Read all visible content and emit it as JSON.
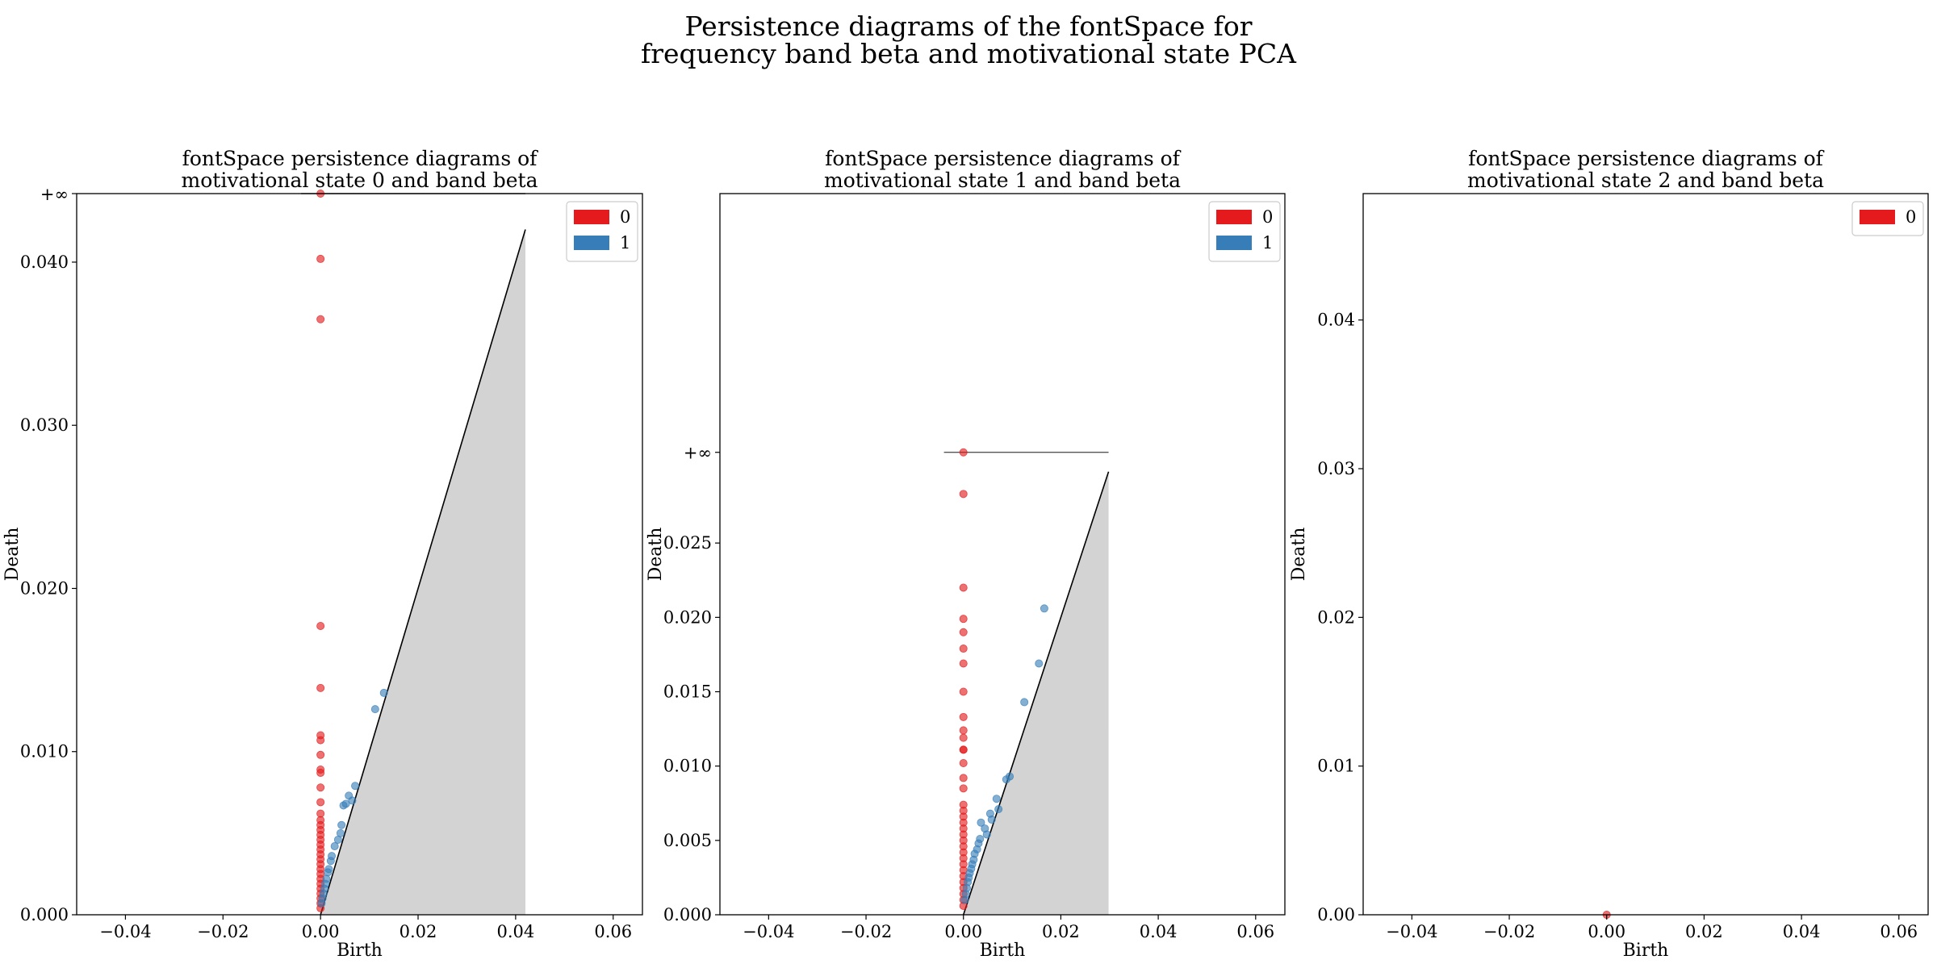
{
  "figure": {
    "title_line1": "Persistence diagrams of the fontSpace for",
    "title_line2": "frequency band beta and motivational state PCA"
  },
  "chart_data": [
    {
      "type": "scatter",
      "title_line1": "fontSpace persistence diagrams of",
      "title_line2": "motivational state 0 and band beta",
      "xlabel": "Birth",
      "ylabel": "Death",
      "xlim": [
        -0.05,
        0.066
      ],
      "ylim": [
        0,
        0.0442
      ],
      "xticks": [
        -0.04,
        -0.02,
        0.0,
        0.02,
        0.04,
        0.06
      ],
      "xtick_labels": [
        "−0.04",
        "−0.02",
        "0.00",
        "0.02",
        "0.04",
        "0.06"
      ],
      "yticks": [
        0,
        0.01,
        0.02,
        0.03,
        0.04
      ],
      "ytick_labels": [
        "0.000",
        "0.010",
        "0.020",
        "0.030",
        "0.040"
      ],
      "infinity_label": "+∞",
      "infinity_y": 0.0442,
      "diagonal_max": 0.042,
      "legend": {
        "position": "top-right",
        "entries": [
          {
            "label": "0",
            "color": "#e41a1c"
          },
          {
            "label": "1",
            "color": "#377eb8"
          }
        ]
      },
      "series": [
        {
          "name": "0",
          "color": "#e41a1c",
          "points": [
            [
              0,
              0.0442
            ],
            [
              0,
              0.0402
            ],
            [
              0,
              0.0365
            ],
            [
              0,
              0.0177
            ],
            [
              0,
              0.0139
            ],
            [
              0,
              0.011
            ],
            [
              0,
              0.0107
            ],
            [
              0,
              0.0098
            ],
            [
              0,
              0.0089
            ],
            [
              0,
              0.0087
            ],
            [
              0,
              0.0078
            ],
            [
              0,
              0.0069
            ],
            [
              0,
              0.0062
            ],
            [
              0,
              0.0058
            ],
            [
              0,
              0.0055
            ],
            [
              0,
              0.0052
            ],
            [
              0,
              0.0049
            ],
            [
              0,
              0.0046
            ],
            [
              0,
              0.0043
            ],
            [
              0,
              0.004
            ],
            [
              0,
              0.0037
            ],
            [
              0,
              0.0034
            ],
            [
              0,
              0.0031
            ],
            [
              0,
              0.0028
            ],
            [
              0,
              0.0025
            ],
            [
              0,
              0.0022
            ],
            [
              0,
              0.0019
            ],
            [
              0,
              0.0016
            ],
            [
              0,
              0.0013
            ],
            [
              0,
              0.001
            ],
            [
              0,
              0.0007
            ],
            [
              0,
              0.0004
            ]
          ]
        },
        {
          "name": "1",
          "color": "#377eb8",
          "points": [
            [
              0.0112,
              0.0126
            ],
            [
              0.013,
              0.0136
            ],
            [
              0.0071,
              0.0079
            ],
            [
              0.0058,
              0.0073
            ],
            [
              0.0065,
              0.007
            ],
            [
              0.0047,
              0.0067
            ],
            [
              0.0052,
              0.0068
            ],
            [
              0.0043,
              0.0055
            ],
            [
              0.0041,
              0.005
            ],
            [
              0.0036,
              0.0046
            ],
            [
              0.0029,
              0.0042
            ],
            [
              0.0023,
              0.0036
            ],
            [
              0.0021,
              0.0033
            ],
            [
              0.0017,
              0.0028
            ],
            [
              0.0015,
              0.0026
            ],
            [
              0.0012,
              0.0022
            ],
            [
              0.001,
              0.0019
            ],
            [
              0.0008,
              0.0016
            ],
            [
              0.0006,
              0.0013
            ],
            [
              0.0004,
              0.001
            ],
            [
              0.0002,
              0.0007
            ]
          ]
        }
      ]
    },
    {
      "type": "scatter",
      "title_line1": "fontSpace persistence diagrams of",
      "title_line2": "motivational state 1 and band beta",
      "xlabel": "Birth",
      "ylabel": "Death",
      "xlim": [
        -0.05,
        0.066
      ],
      "ylim": [
        0,
        0.0485
      ],
      "xticks": [
        -0.04,
        -0.02,
        0.0,
        0.02,
        0.04,
        0.06
      ],
      "xtick_labels": [
        "−0.04",
        "−0.02",
        "0.00",
        "0.02",
        "0.04",
        "0.06"
      ],
      "yticks": [
        0,
        0.005,
        0.01,
        0.015,
        0.02,
        0.025
      ],
      "ytick_labels": [
        "0.000",
        "0.005",
        "0.010",
        "0.015",
        "0.020",
        "0.025"
      ],
      "infinity_label": "+∞",
      "infinity_y": 0.0311,
      "diagonal_max": 0.0298,
      "legend": {
        "position": "top-right",
        "entries": [
          {
            "label": "0",
            "color": "#e41a1c"
          },
          {
            "label": "1",
            "color": "#377eb8"
          }
        ]
      },
      "series": [
        {
          "name": "0",
          "color": "#e41a1c",
          "points": [
            [
              0,
              0.0311
            ],
            [
              0,
              0.0283
            ],
            [
              0,
              0.022
            ],
            [
              0,
              0.0199
            ],
            [
              0,
              0.019
            ],
            [
              0,
              0.0179
            ],
            [
              0,
              0.0169
            ],
            [
              0,
              0.015
            ],
            [
              0,
              0.0133
            ],
            [
              0,
              0.0124
            ],
            [
              0,
              0.0119
            ],
            [
              0,
              0.0111
            ],
            [
              0,
              0.0111
            ],
            [
              0,
              0.0102
            ],
            [
              0,
              0.0092
            ],
            [
              0,
              0.0085
            ],
            [
              0,
              0.0074
            ],
            [
              0,
              0.007
            ],
            [
              0,
              0.0066
            ],
            [
              0,
              0.0062
            ],
            [
              0,
              0.0058
            ],
            [
              0,
              0.0054
            ],
            [
              0,
              0.005
            ],
            [
              0,
              0.0046
            ],
            [
              0,
              0.0042
            ],
            [
              0,
              0.0038
            ],
            [
              0,
              0.0034
            ],
            [
              0,
              0.003
            ],
            [
              0,
              0.0026
            ],
            [
              0,
              0.0022
            ],
            [
              0,
              0.0018
            ],
            [
              0,
              0.0014
            ],
            [
              0,
              0.001
            ],
            [
              0,
              0.0006
            ]
          ]
        },
        {
          "name": "1",
          "color": "#377eb8",
          "points": [
            [
              0.0166,
              0.0206
            ],
            [
              0.0155,
              0.0169
            ],
            [
              0.0125,
              0.0143
            ],
            [
              0.0088,
              0.0091
            ],
            [
              0.0095,
              0.0093
            ],
            [
              0.0068,
              0.0078
            ],
            [
              0.0072,
              0.0071
            ],
            [
              0.0055,
              0.0068
            ],
            [
              0.0058,
              0.0064
            ],
            [
              0.0036,
              0.0062
            ],
            [
              0.0044,
              0.0058
            ],
            [
              0.0048,
              0.0054
            ],
            [
              0.0034,
              0.0051
            ],
            [
              0.0031,
              0.0048
            ],
            [
              0.0028,
              0.0044
            ],
            [
              0.0023,
              0.0041
            ],
            [
              0.0021,
              0.0037
            ],
            [
              0.0018,
              0.0034
            ],
            [
              0.0016,
              0.0031
            ],
            [
              0.0013,
              0.0028
            ],
            [
              0.0011,
              0.0025
            ],
            [
              0.0009,
              0.0022
            ],
            [
              0.0007,
              0.0018
            ],
            [
              0.0005,
              0.0014
            ],
            [
              0.0003,
              0.001
            ]
          ]
        }
      ]
    },
    {
      "type": "scatter",
      "title_line1": "fontSpace persistence diagrams of",
      "title_line2": "motivational state 2 and band beta",
      "xlabel": "Birth",
      "ylabel": "Death",
      "xlim": [
        -0.05,
        0.066
      ],
      "ylim": [
        0,
        0.0485
      ],
      "xticks": [
        -0.04,
        -0.02,
        0.0,
        0.02,
        0.04,
        0.06
      ],
      "xtick_labels": [
        "−0.04",
        "−0.02",
        "0.00",
        "0.02",
        "0.04",
        "0.06"
      ],
      "yticks": [
        0,
        0.01,
        0.02,
        0.03,
        0.04
      ],
      "ytick_labels": [
        "0.00",
        "0.01",
        "0.02",
        "0.03",
        "0.04"
      ],
      "legend": {
        "position": "top-right",
        "entries": [
          {
            "label": "0",
            "color": "#e41a1c"
          }
        ]
      },
      "series": [
        {
          "name": "0",
          "color": "#e41a1c",
          "points": [
            [
              0,
              0
            ]
          ]
        }
      ]
    }
  ]
}
